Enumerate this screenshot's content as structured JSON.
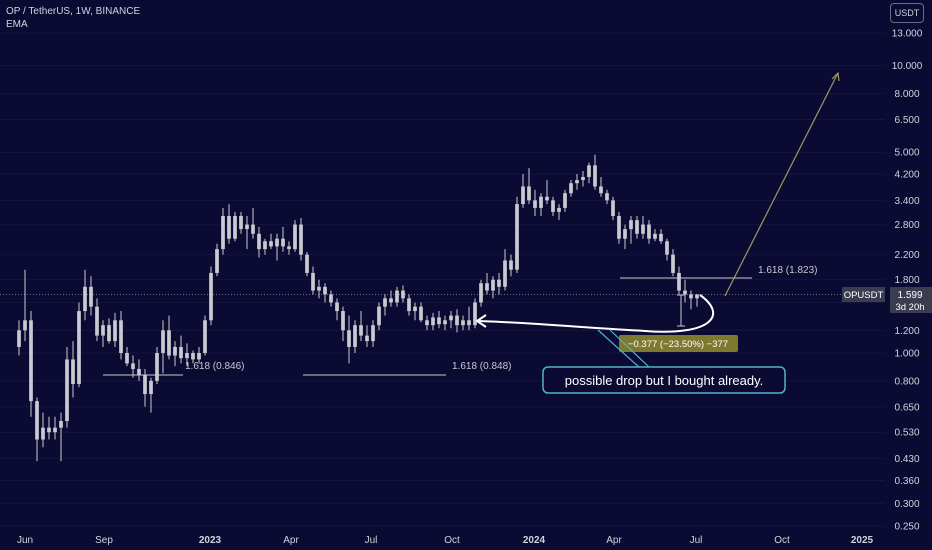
{
  "header": {
    "title": "OP / TetherUS, 1W, BINANCE",
    "indicator": "EMA"
  },
  "currency_button": "USDT",
  "price_label": {
    "symbol": "OPUSDT",
    "price": "1.599",
    "countdown": "3d 20h"
  },
  "annotations": {
    "fib_1": "1.618 (0.846)",
    "fib_2": "1.618 (0.848)",
    "fib_3": "1.618 (1.823)",
    "measure": "−0.377 (−23.50%) −377",
    "note": "possible drop but I bought already."
  },
  "colors": {
    "background": "#0a0a33",
    "candle": "#c9c9cf",
    "text": "#d1d4dc",
    "arrow_up": "#9c9a63",
    "measure_bg": "#7d7a30",
    "callout_border": "#4fb3c6"
  },
  "chart_data": {
    "type": "candlestick",
    "symbol": "OPUSDT",
    "timeframe": "1W",
    "exchange": "BINANCE",
    "scale": "log",
    "ylim": [
      0.24,
      19
    ],
    "x_ticks": [
      "Jun",
      "Sep",
      "2023",
      "Apr",
      "Jul",
      "Oct",
      "2024",
      "Apr",
      "Jul",
      "Oct",
      "2025"
    ],
    "y_ticks": [
      "13.000",
      "10.000",
      "8.000",
      "6.500",
      "5.000",
      "4.200",
      "3.400",
      "2.800",
      "2.200",
      "1.800",
      "1.500",
      "1.200",
      "1.000",
      "0.800",
      "0.650",
      "0.530",
      "0.430",
      "0.360",
      "0.300",
      "0.250"
    ],
    "last_price": 1.599,
    "candles": [
      {
        "o": 1.05,
        "h": 1.3,
        "l": 0.98,
        "c": 1.2
      },
      {
        "o": 1.2,
        "h": 1.95,
        "l": 1.1,
        "c": 1.3
      },
      {
        "o": 1.3,
        "h": 1.4,
        "l": 0.6,
        "c": 0.68
      },
      {
        "o": 0.68,
        "h": 0.7,
        "l": 0.42,
        "c": 0.5
      },
      {
        "o": 0.5,
        "h": 0.62,
        "l": 0.47,
        "c": 0.55
      },
      {
        "o": 0.55,
        "h": 0.6,
        "l": 0.5,
        "c": 0.53
      },
      {
        "o": 0.53,
        "h": 0.6,
        "l": 0.5,
        "c": 0.55
      },
      {
        "o": 0.55,
        "h": 0.62,
        "l": 0.42,
        "c": 0.58
      },
      {
        "o": 0.58,
        "h": 1.05,
        "l": 0.55,
        "c": 0.95
      },
      {
        "o": 0.95,
        "h": 1.1,
        "l": 0.7,
        "c": 0.78
      },
      {
        "o": 0.78,
        "h": 1.5,
        "l": 0.76,
        "c": 1.4
      },
      {
        "o": 1.4,
        "h": 1.95,
        "l": 1.3,
        "c": 1.7
      },
      {
        "o": 1.7,
        "h": 1.85,
        "l": 1.35,
        "c": 1.45
      },
      {
        "o": 1.45,
        "h": 1.55,
        "l": 1.1,
        "c": 1.15
      },
      {
        "o": 1.15,
        "h": 1.3,
        "l": 1.05,
        "c": 1.25
      },
      {
        "o": 1.25,
        "h": 1.32,
        "l": 1.08,
        "c": 1.1
      },
      {
        "o": 1.1,
        "h": 1.38,
        "l": 1.05,
        "c": 1.3
      },
      {
        "o": 1.3,
        "h": 1.4,
        "l": 0.95,
        "c": 1.0
      },
      {
        "o": 1.0,
        "h": 1.05,
        "l": 0.9,
        "c": 0.92
      },
      {
        "o": 0.92,
        "h": 0.98,
        "l": 0.82,
        "c": 0.88
      },
      {
        "o": 0.88,
        "h": 0.95,
        "l": 0.8,
        "c": 0.84
      },
      {
        "o": 0.84,
        "h": 0.88,
        "l": 0.65,
        "c": 0.72
      },
      {
        "o": 0.72,
        "h": 0.82,
        "l": 0.62,
        "c": 0.8
      },
      {
        "o": 0.8,
        "h": 1.05,
        "l": 0.78,
        "c": 1.0
      },
      {
        "o": 1.0,
        "h": 1.3,
        "l": 0.85,
        "c": 1.2
      },
      {
        "o": 1.2,
        "h": 1.35,
        "l": 0.95,
        "c": 0.98
      },
      {
        "o": 0.98,
        "h": 1.1,
        "l": 0.9,
        "c": 1.05
      },
      {
        "o": 1.05,
        "h": 1.15,
        "l": 0.92,
        "c": 0.96
      },
      {
        "o": 0.96,
        "h": 1.08,
        "l": 0.9,
        "c": 1.0
      },
      {
        "o": 1.0,
        "h": 1.02,
        "l": 0.92,
        "c": 0.95
      },
      {
        "o": 0.95,
        "h": 1.05,
        "l": 0.92,
        "c": 1.0
      },
      {
        "o": 1.0,
        "h": 1.35,
        "l": 0.98,
        "c": 1.3
      },
      {
        "o": 1.3,
        "h": 2.0,
        "l": 1.25,
        "c": 1.9
      },
      {
        "o": 1.9,
        "h": 2.4,
        "l": 1.85,
        "c": 2.3
      },
      {
        "o": 2.3,
        "h": 3.2,
        "l": 2.2,
        "c": 3.0
      },
      {
        "o": 3.0,
        "h": 3.3,
        "l": 2.4,
        "c": 2.5
      },
      {
        "o": 2.5,
        "h": 3.1,
        "l": 2.45,
        "c": 3.0
      },
      {
        "o": 3.0,
        "h": 3.1,
        "l": 2.6,
        "c": 2.7
      },
      {
        "o": 2.7,
        "h": 3.0,
        "l": 2.3,
        "c": 2.8
      },
      {
        "o": 2.8,
        "h": 3.2,
        "l": 2.5,
        "c": 2.6
      },
      {
        "o": 2.6,
        "h": 2.75,
        "l": 2.15,
        "c": 2.3
      },
      {
        "o": 2.3,
        "h": 2.5,
        "l": 2.2,
        "c": 2.45
      },
      {
        "o": 2.45,
        "h": 2.6,
        "l": 2.3,
        "c": 2.35
      },
      {
        "o": 2.35,
        "h": 2.6,
        "l": 2.1,
        "c": 2.5
      },
      {
        "o": 2.5,
        "h": 2.75,
        "l": 2.25,
        "c": 2.35
      },
      {
        "o": 2.35,
        "h": 2.45,
        "l": 2.2,
        "c": 2.3
      },
      {
        "o": 2.3,
        "h": 2.9,
        "l": 2.25,
        "c": 2.8
      },
      {
        "o": 2.8,
        "h": 2.95,
        "l": 2.1,
        "c": 2.2
      },
      {
        "o": 2.2,
        "h": 2.25,
        "l": 1.85,
        "c": 1.9
      },
      {
        "o": 1.9,
        "h": 2.0,
        "l": 1.6,
        "c": 1.65
      },
      {
        "o": 1.65,
        "h": 1.8,
        "l": 1.55,
        "c": 1.7
      },
      {
        "o": 1.7,
        "h": 1.75,
        "l": 1.5,
        "c": 1.6
      },
      {
        "o": 1.6,
        "h": 1.65,
        "l": 1.45,
        "c": 1.5
      },
      {
        "o": 1.5,
        "h": 1.55,
        "l": 1.3,
        "c": 1.4
      },
      {
        "o": 1.4,
        "h": 1.45,
        "l": 1.1,
        "c": 1.2
      },
      {
        "o": 1.2,
        "h": 1.35,
        "l": 0.92,
        "c": 1.05
      },
      {
        "o": 1.05,
        "h": 1.3,
        "l": 1.0,
        "c": 1.25
      },
      {
        "o": 1.25,
        "h": 1.4,
        "l": 1.1,
        "c": 1.15
      },
      {
        "o": 1.15,
        "h": 1.25,
        "l": 1.05,
        "c": 1.1
      },
      {
        "o": 1.1,
        "h": 1.3,
        "l": 1.05,
        "c": 1.25
      },
      {
        "o": 1.25,
        "h": 1.5,
        "l": 1.2,
        "c": 1.45
      },
      {
        "o": 1.45,
        "h": 1.6,
        "l": 1.35,
        "c": 1.55
      },
      {
        "o": 1.55,
        "h": 1.65,
        "l": 1.45,
        "c": 1.5
      },
      {
        "o": 1.5,
        "h": 1.7,
        "l": 1.45,
        "c": 1.65
      },
      {
        "o": 1.65,
        "h": 1.72,
        "l": 1.5,
        "c": 1.55
      },
      {
        "o": 1.55,
        "h": 1.6,
        "l": 1.35,
        "c": 1.4
      },
      {
        "o": 1.4,
        "h": 1.5,
        "l": 1.3,
        "c": 1.45
      },
      {
        "o": 1.45,
        "h": 1.5,
        "l": 1.28,
        "c": 1.3
      },
      {
        "o": 1.3,
        "h": 1.35,
        "l": 1.2,
        "c": 1.25
      },
      {
        "o": 1.25,
        "h": 1.38,
        "l": 1.2,
        "c": 1.33
      },
      {
        "o": 1.33,
        "h": 1.4,
        "l": 1.22,
        "c": 1.26
      },
      {
        "o": 1.26,
        "h": 1.35,
        "l": 1.2,
        "c": 1.3
      },
      {
        "o": 1.3,
        "h": 1.4,
        "l": 1.22,
        "c": 1.35
      },
      {
        "o": 1.35,
        "h": 1.42,
        "l": 1.18,
        "c": 1.25
      },
      {
        "o": 1.25,
        "h": 1.35,
        "l": 1.2,
        "c": 1.3
      },
      {
        "o": 1.3,
        "h": 1.45,
        "l": 1.2,
        "c": 1.25
      },
      {
        "o": 1.25,
        "h": 1.55,
        "l": 1.22,
        "c": 1.5
      },
      {
        "o": 1.5,
        "h": 1.8,
        "l": 1.45,
        "c": 1.75
      },
      {
        "o": 1.75,
        "h": 1.9,
        "l": 1.6,
        "c": 1.65
      },
      {
        "o": 1.65,
        "h": 1.85,
        "l": 1.55,
        "c": 1.8
      },
      {
        "o": 1.8,
        "h": 1.9,
        "l": 1.6,
        "c": 1.7
      },
      {
        "o": 1.7,
        "h": 2.3,
        "l": 1.65,
        "c": 2.1
      },
      {
        "o": 2.1,
        "h": 2.2,
        "l": 1.85,
        "c": 1.95
      },
      {
        "o": 1.95,
        "h": 3.5,
        "l": 1.9,
        "c": 3.3
      },
      {
        "o": 3.3,
        "h": 4.2,
        "l": 3.2,
        "c": 3.8
      },
      {
        "o": 3.8,
        "h": 4.4,
        "l": 3.3,
        "c": 3.4
      },
      {
        "o": 3.4,
        "h": 3.7,
        "l": 3.0,
        "c": 3.2
      },
      {
        "o": 3.2,
        "h": 3.6,
        "l": 3.0,
        "c": 3.5
      },
      {
        "o": 3.5,
        "h": 4.0,
        "l": 3.3,
        "c": 3.4
      },
      {
        "o": 3.4,
        "h": 3.5,
        "l": 3.0,
        "c": 3.1
      },
      {
        "o": 3.1,
        "h": 3.3,
        "l": 2.9,
        "c": 3.2
      },
      {
        "o": 3.2,
        "h": 3.7,
        "l": 3.1,
        "c": 3.6
      },
      {
        "o": 3.6,
        "h": 4.0,
        "l": 3.5,
        "c": 3.9
      },
      {
        "o": 3.9,
        "h": 4.2,
        "l": 3.7,
        "c": 4.0
      },
      {
        "o": 4.0,
        "h": 4.3,
        "l": 3.8,
        "c": 4.1
      },
      {
        "o": 4.1,
        "h": 4.6,
        "l": 3.9,
        "c": 4.5
      },
      {
        "o": 4.5,
        "h": 4.9,
        "l": 3.7,
        "c": 3.8
      },
      {
        "o": 3.8,
        "h": 4.1,
        "l": 3.5,
        "c": 3.6
      },
      {
        "o": 3.6,
        "h": 3.7,
        "l": 3.3,
        "c": 3.4
      },
      {
        "o": 3.4,
        "h": 3.5,
        "l": 2.9,
        "c": 3.0
      },
      {
        "o": 3.0,
        "h": 3.1,
        "l": 2.4,
        "c": 2.5
      },
      {
        "o": 2.5,
        "h": 2.8,
        "l": 2.3,
        "c": 2.7
      },
      {
        "o": 2.7,
        "h": 3.0,
        "l": 2.4,
        "c": 2.9
      },
      {
        "o": 2.9,
        "h": 3.0,
        "l": 2.5,
        "c": 2.6
      },
      {
        "o": 2.6,
        "h": 3.0,
        "l": 2.5,
        "c": 2.8
      },
      {
        "o": 2.8,
        "h": 2.9,
        "l": 2.4,
        "c": 2.5
      },
      {
        "o": 2.5,
        "h": 2.7,
        "l": 2.45,
        "c": 2.6
      },
      {
        "o": 2.6,
        "h": 2.7,
        "l": 2.4,
        "c": 2.45
      },
      {
        "o": 2.45,
        "h": 2.5,
        "l": 2.1,
        "c": 2.2
      },
      {
        "o": 2.2,
        "h": 2.3,
        "l": 1.85,
        "c": 1.9
      },
      {
        "o": 1.9,
        "h": 2.0,
        "l": 1.6,
        "c": 1.65
      },
      {
        "o": 1.65,
        "h": 1.8,
        "l": 1.5,
        "c": 1.6
      },
      {
        "o": 1.6,
        "h": 1.65,
        "l": 1.42,
        "c": 1.55
      },
      {
        "o": 1.55,
        "h": 1.6,
        "l": 1.45,
        "c": 1.6
      }
    ],
    "drawings": [
      {
        "type": "hline",
        "price": 0.846,
        "label": "1.618 (0.846)"
      },
      {
        "type": "hline",
        "price": 0.848,
        "label": "1.618 (0.848)"
      },
      {
        "type": "hline",
        "price": 1.823,
        "label": "1.618 (1.823)"
      },
      {
        "type": "measure",
        "change": -0.377,
        "change_pct": -23.5,
        "ticks": -377
      },
      {
        "type": "callout",
        "text": "possible drop but I bought already."
      },
      {
        "type": "arrow",
        "direction": "up"
      },
      {
        "type": "curved_arrow",
        "direction": "left"
      }
    ]
  }
}
